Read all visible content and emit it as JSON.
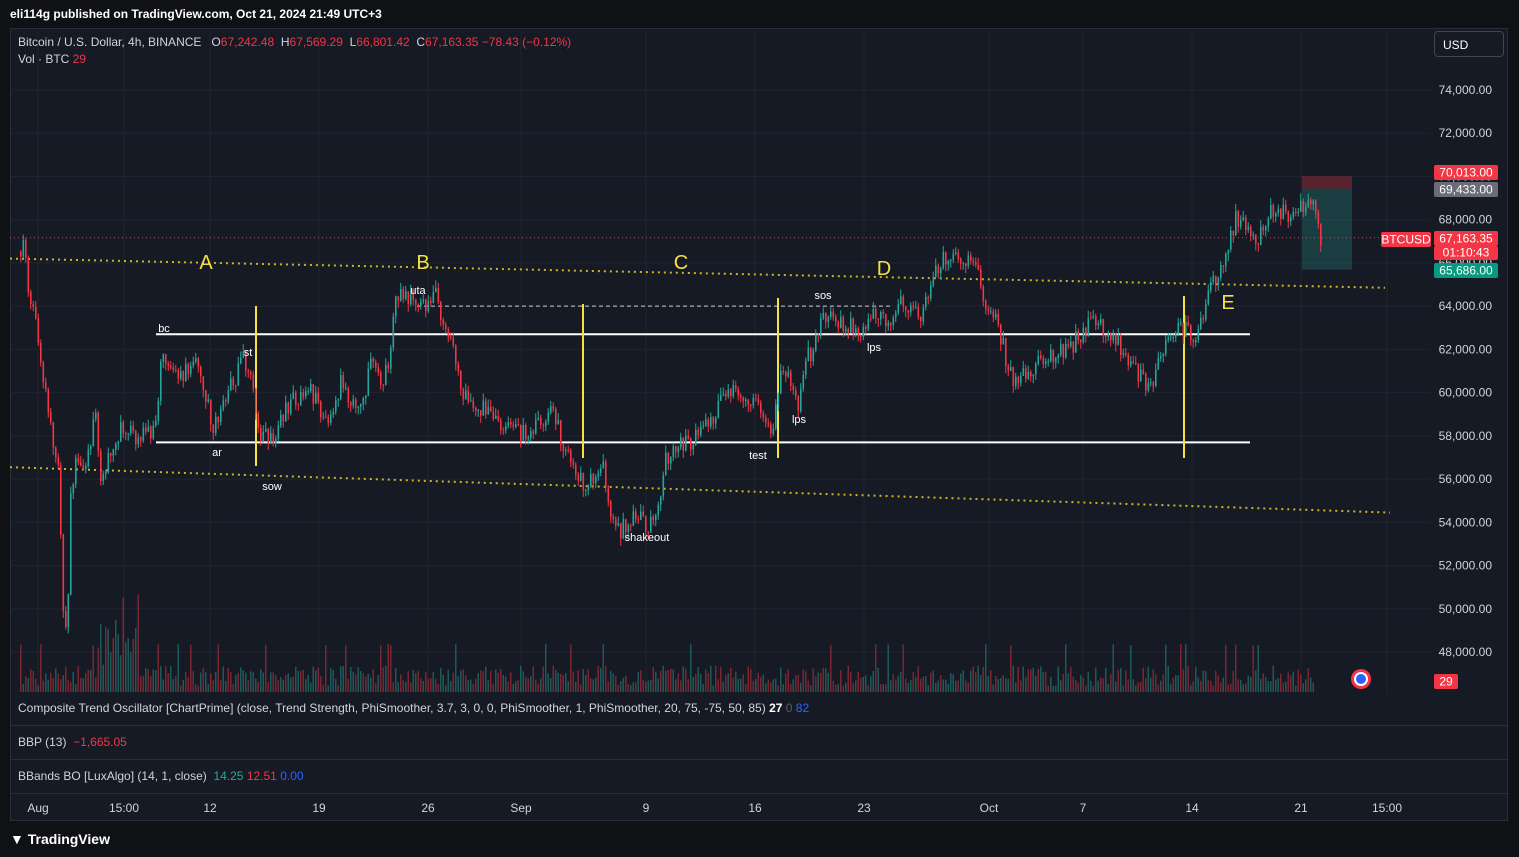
{
  "header": {
    "published": "eli114g published on TradingView.com, Oct 21, 2024 21:49 UTC+3"
  },
  "legend": {
    "symbol": "Bitcoin / U.S. Dollar, 4h, BINANCE",
    "o_label": "O",
    "o": "67,242.48",
    "h_label": "H",
    "h": "67,569.29",
    "l_label": "L",
    "l": "66,801.42",
    "c_label": "C",
    "c": "67,163.35",
    "change": "−78.43 (−0.12%)",
    "vol_label": "Vol · BTC",
    "vol_value": "29"
  },
  "currency_button": "USD",
  "price_tags": {
    "target": "70,013.00",
    "entry": "69,433.00",
    "symbol_tag": "BTCUSD",
    "last": "67,163.35",
    "countdown": "01:10:43",
    "stop": "65,686.00",
    "volume": "29"
  },
  "indicators": [
    {
      "name": "Composite Trend Oscillator [ChartPrime] (close, Trend Strength, PhiSmoother, 3.7, 3, 0, 0, PhiSmoother, 1, PhiSmoother, 20, 75, -75, 50, 85)",
      "values": [
        "27",
        "0",
        "82"
      ]
    },
    {
      "name": "BBP (13)",
      "values": [
        "−1,665.05"
      ]
    },
    {
      "name": "BBands BO [LuxAlgo] (14, 1, close)",
      "values": [
        "14.25",
        "12.51",
        "0.00"
      ]
    }
  ],
  "footer": {
    "brand": "TradingView"
  },
  "colors": {
    "bull": "#26a69a",
    "bear": "#f23645",
    "annotation": "#f5e142",
    "background": "#161a25"
  },
  "chart_data": {
    "type": "candlestick",
    "symbol": "BTCUSD",
    "timeframe": "4h",
    "y_range": [
      46800,
      75800
    ],
    "y_ticks": [
      "74,000.00",
      "72,000.00",
      "70,000.00",
      "68,000.00",
      "66,000.00",
      "64,000.00",
      "62,000.00",
      "60,000.00",
      "58,000.00",
      "56,000.00",
      "54,000.00",
      "52,000.00",
      "50,000.00",
      "48,000.00"
    ],
    "x_ticks": [
      "Aug",
      "15:00",
      "12",
      "19",
      "26",
      "Sep",
      "9",
      "16",
      "23",
      "Oct",
      "7",
      "14",
      "21",
      "15:00"
    ],
    "price_path": [
      [
        0,
        66500
      ],
      [
        4,
        67000
      ],
      [
        8,
        64500
      ],
      [
        13,
        64000
      ],
      [
        18,
        62000
      ],
      [
        25,
        60000
      ],
      [
        32,
        58000
      ],
      [
        38,
        56500
      ],
      [
        42,
        50500
      ],
      [
        46,
        48500
      ],
      [
        50,
        55000
      ],
      [
        55,
        57000
      ],
      [
        62,
        56000
      ],
      [
        69,
        57500
      ],
      [
        75,
        59000
      ],
      [
        80,
        56000
      ],
      [
        85,
        56500
      ],
      [
        90,
        57500
      ],
      [
        100,
        58200
      ],
      [
        108,
        58500
      ],
      [
        116,
        57800
      ],
      [
        122,
        58200
      ],
      [
        128,
        58000
      ],
      [
        136,
        58500
      ],
      [
        141,
        62300
      ],
      [
        150,
        61000
      ],
      [
        160,
        60800
      ],
      [
        170,
        61200
      ],
      [
        178,
        61500
      ],
      [
        185,
        60000
      ],
      [
        192,
        58500
      ],
      [
        200,
        59200
      ],
      [
        208,
        60000
      ],
      [
        215,
        60800
      ],
      [
        222,
        61500
      ],
      [
        230,
        61000
      ],
      [
        236,
        59000
      ],
      [
        240,
        57800
      ],
      [
        247,
        58000
      ],
      [
        253,
        57500
      ],
      [
        260,
        58800
      ],
      [
        270,
        59500
      ],
      [
        280,
        59700
      ],
      [
        290,
        60200
      ],
      [
        298,
        59300
      ],
      [
        305,
        58500
      ],
      [
        312,
        59000
      ],
      [
        320,
        60500
      ],
      [
        327,
        59800
      ],
      [
        335,
        59500
      ],
      [
        345,
        60200
      ],
      [
        352,
        61700
      ],
      [
        360,
        60500
      ],
      [
        368,
        61200
      ],
      [
        375,
        64800
      ],
      [
        382,
        64400
      ],
      [
        390,
        64600
      ],
      [
        400,
        64200
      ],
      [
        408,
        64000
      ],
      [
        415,
        64400
      ],
      [
        422,
        63400
      ],
      [
        430,
        62500
      ],
      [
        436,
        61500
      ],
      [
        442,
        60000
      ],
      [
        450,
        59200
      ],
      [
        458,
        59500
      ],
      [
        466,
        59000
      ],
      [
        474,
        58500
      ],
      [
        482,
        58300
      ],
      [
        490,
        58500
      ],
      [
        498,
        58200
      ],
      [
        506,
        58000
      ],
      [
        512,
        58300
      ],
      [
        518,
        58500
      ],
      [
        525,
        58800
      ],
      [
        532,
        59300
      ],
      [
        538,
        58200
      ],
      [
        544,
        57500
      ],
      [
        550,
        57000
      ],
      [
        558,
        56000
      ],
      [
        566,
        55800
      ],
      [
        574,
        56200
      ],
      [
        582,
        56500
      ],
      [
        590,
        54500
      ],
      [
        598,
        53600
      ],
      [
        606,
        54000
      ],
      [
        614,
        54200
      ],
      [
        622,
        54000
      ],
      [
        630,
        53900
      ],
      [
        638,
        55000
      ],
      [
        645,
        56800
      ],
      [
        652,
        57500
      ],
      [
        660,
        57800
      ],
      [
        668,
        57600
      ],
      [
        676,
        58000
      ],
      [
        685,
        58500
      ],
      [
        695,
        59000
      ],
      [
        703,
        59700
      ],
      [
        711,
        60200
      ],
      [
        719,
        60000
      ],
      [
        728,
        59800
      ],
      [
        736,
        59600
      ],
      [
        744,
        58800
      ],
      [
        752,
        58000
      ],
      [
        758,
        60500
      ],
      [
        765,
        61000
      ],
      [
        772,
        60300
      ],
      [
        778,
        59400
      ],
      [
        785,
        61500
      ],
      [
        792,
        62000
      ],
      [
        800,
        63300
      ],
      [
        807,
        63800
      ],
      [
        815,
        63400
      ],
      [
        823,
        63000
      ],
      [
        831,
        63100
      ],
      [
        839,
        62800
      ],
      [
        846,
        63200
      ],
      [
        853,
        63500
      ],
      [
        860,
        64000
      ],
      [
        867,
        63300
      ],
      [
        875,
        63800
      ],
      [
        882,
        64200
      ],
      [
        890,
        64100
      ],
      [
        898,
        63400
      ],
      [
        906,
        64500
      ],
      [
        914,
        65300
      ],
      [
        922,
        66200
      ],
      [
        930,
        66500
      ],
      [
        938,
        66200
      ],
      [
        946,
        66300
      ],
      [
        954,
        66000
      ],
      [
        960,
        64800
      ],
      [
        967,
        63800
      ],
      [
        975,
        63500
      ],
      [
        983,
        62000
      ],
      [
        991,
        60600
      ],
      [
        999,
        60800
      ],
      [
        1007,
        60600
      ],
      [
        1015,
        61500
      ],
      [
        1023,
        61400
      ],
      [
        1031,
        61800
      ],
      [
        1039,
        62000
      ],
      [
        1047,
        62000
      ],
      [
        1055,
        62400
      ],
      [
        1063,
        62800
      ],
      [
        1071,
        63300
      ],
      [
        1079,
        63300
      ],
      [
        1087,
        62800
      ],
      [
        1095,
        62600
      ],
      [
        1103,
        61700
      ],
      [
        1111,
        61200
      ],
      [
        1119,
        60800
      ],
      [
        1127,
        60200
      ],
      [
        1135,
        60800
      ],
      [
        1143,
        62200
      ],
      [
        1151,
        62600
      ],
      [
        1159,
        63200
      ],
      [
        1167,
        62800
      ],
      [
        1175,
        62500
      ],
      [
        1183,
        63500
      ],
      [
        1191,
        65200
      ],
      [
        1199,
        65700
      ],
      [
        1207,
        67000
      ],
      [
        1215,
        68000
      ],
      [
        1223,
        67800
      ],
      [
        1231,
        67400
      ],
      [
        1239,
        67200
      ],
      [
        1247,
        68200
      ],
      [
        1255,
        68500
      ],
      [
        1263,
        68300
      ],
      [
        1271,
        68200
      ],
      [
        1279,
        68400
      ],
      [
        1287,
        68600
      ],
      [
        1293,
        69200
      ],
      [
        1300,
        67163
      ]
    ],
    "volume_range": [
      0,
      50
    ],
    "phase_labels": [
      "A",
      "B",
      "C",
      "D",
      "E"
    ],
    "event_labels": [
      "bc",
      "st",
      "ar",
      "sow",
      "uta",
      "shakeout",
      "test",
      "lps",
      "sos",
      "lps"
    ],
    "levels": {
      "range_high": 62700,
      "range_low": 57700,
      "uta_line": 64000
    }
  }
}
